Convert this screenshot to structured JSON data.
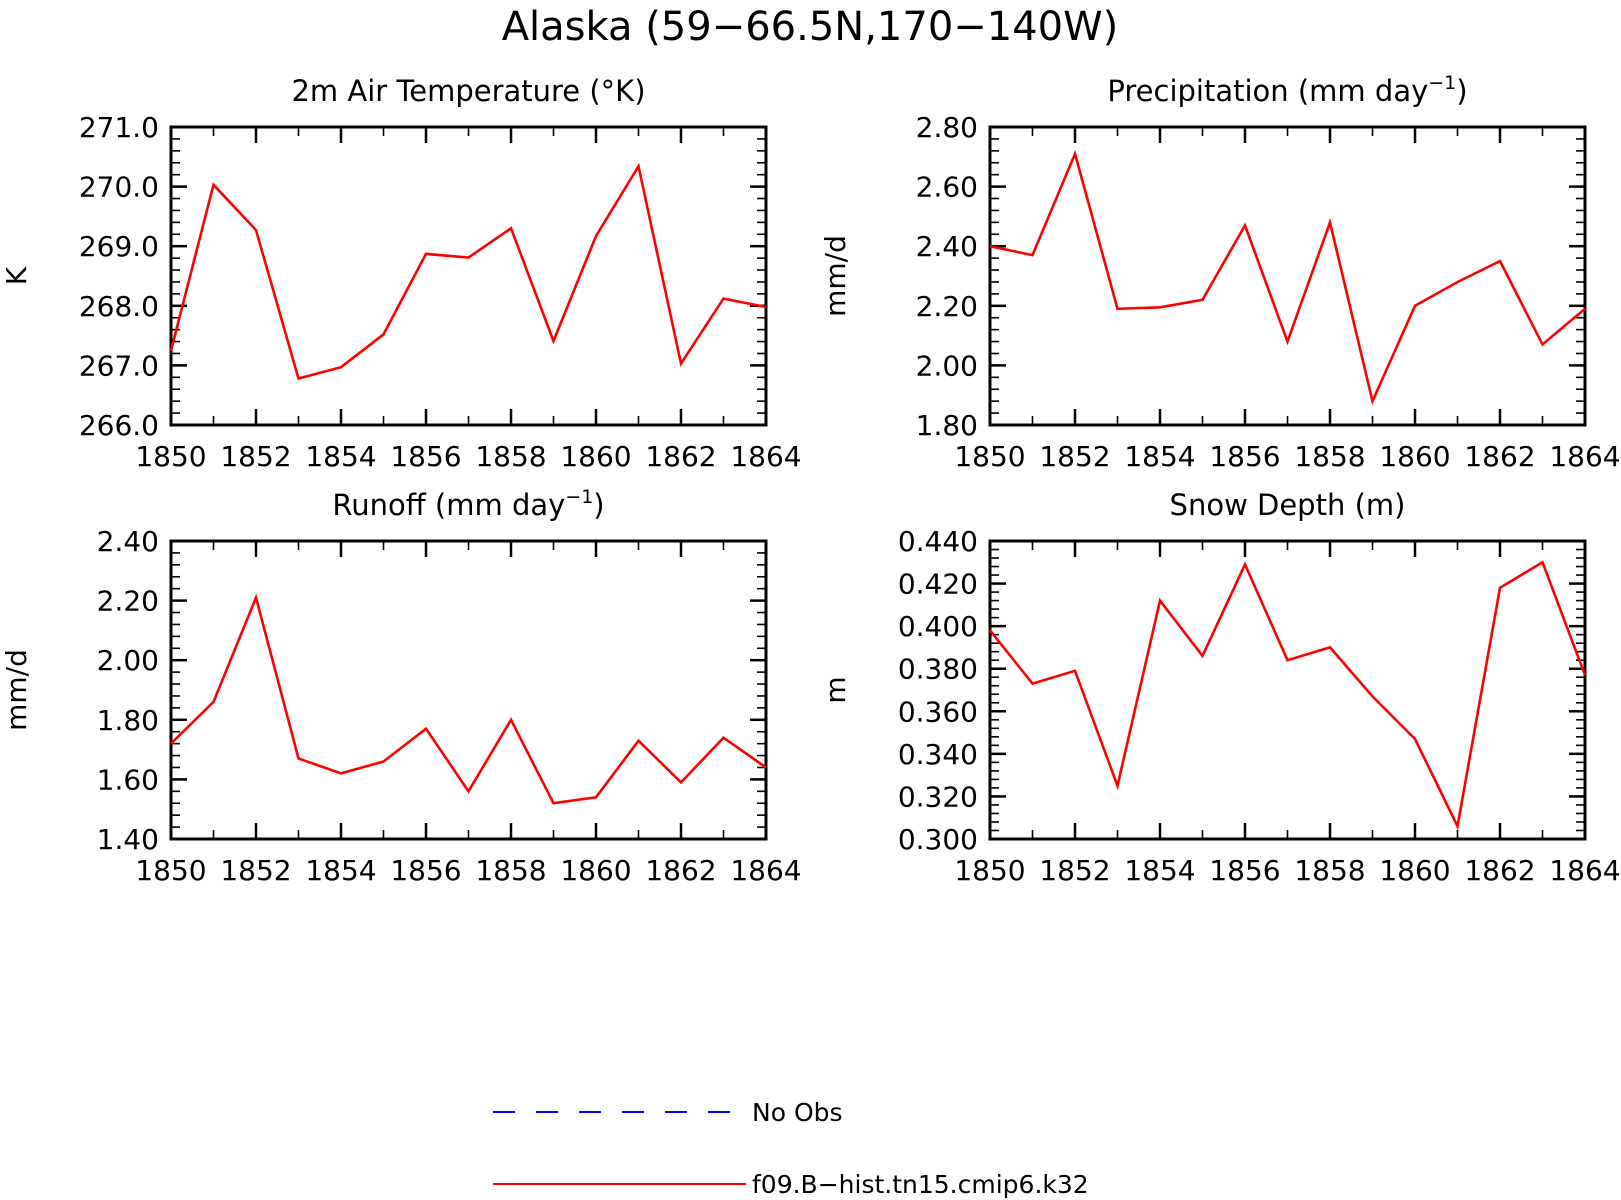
{
  "figure": {
    "title": "Alaska (59−66.5N,170−140W)"
  },
  "chart_data": [
    {
      "type": "line",
      "title": "2m Air Temperature (°K)",
      "title_sup": "",
      "title_suffix": "",
      "ylabel": "K",
      "xlim": [
        1850,
        1864
      ],
      "ylim": [
        266.0,
        271.0
      ],
      "x_ticks": [
        1850,
        1852,
        1854,
        1856,
        1858,
        1860,
        1862,
        1864
      ],
      "y_ticks": [
        "266.0",
        "267.0",
        "268.0",
        "269.0",
        "270.0",
        "271.0"
      ],
      "x": [
        1850,
        1851,
        1852,
        1853,
        1854,
        1855,
        1856,
        1857,
        1858,
        1859,
        1860,
        1861,
        1862,
        1863,
        1864
      ],
      "series": [
        {
          "name": "f09.B−hist.tn15.cmip6.k32",
          "color": "#ff0000",
          "values": [
            267.25,
            270.03,
            269.27,
            266.78,
            266.97,
            267.52,
            268.87,
            268.81,
            269.3,
            267.41,
            269.17,
            270.34,
            267.03,
            268.12,
            267.98
          ]
        }
      ]
    },
    {
      "type": "line",
      "title": "Precipitation (mm day",
      "title_sup": "−1",
      "title_suffix": ")",
      "ylabel": "mm/d",
      "xlim": [
        1850,
        1864
      ],
      "ylim": [
        1.8,
        2.8
      ],
      "x_ticks": [
        1850,
        1852,
        1854,
        1856,
        1858,
        1860,
        1862,
        1864
      ],
      "y_ticks": [
        "1.80",
        "2.00",
        "2.20",
        "2.40",
        "2.60",
        "2.80"
      ],
      "x": [
        1850,
        1851,
        1852,
        1853,
        1854,
        1855,
        1856,
        1857,
        1858,
        1859,
        1860,
        1861,
        1862,
        1863,
        1864
      ],
      "series": [
        {
          "name": "f09.B−hist.tn15.cmip6.k32",
          "color": "#ff0000",
          "values": [
            2.4,
            2.37,
            2.71,
            2.19,
            2.195,
            2.22,
            2.47,
            2.08,
            2.48,
            1.88,
            2.2,
            2.28,
            2.35,
            2.07,
            2.19
          ]
        }
      ]
    },
    {
      "type": "line",
      "title": "Runoff (mm day",
      "title_sup": "−1",
      "title_suffix": ")",
      "ylabel": "mm/d",
      "xlim": [
        1850,
        1864
      ],
      "ylim": [
        1.4,
        2.4
      ],
      "x_ticks": [
        1850,
        1852,
        1854,
        1856,
        1858,
        1860,
        1862,
        1864
      ],
      "y_ticks": [
        "1.40",
        "1.60",
        "1.80",
        "2.00",
        "2.20",
        "2.40"
      ],
      "x": [
        1850,
        1851,
        1852,
        1853,
        1854,
        1855,
        1856,
        1857,
        1858,
        1859,
        1860,
        1861,
        1862,
        1863,
        1864
      ],
      "series": [
        {
          "name": "f09.B−hist.tn15.cmip6.k32",
          "color": "#ff0000",
          "values": [
            1.72,
            1.86,
            2.21,
            1.67,
            1.62,
            1.66,
            1.77,
            1.56,
            1.8,
            1.52,
            1.54,
            1.73,
            1.59,
            1.74,
            1.64
          ]
        }
      ]
    },
    {
      "type": "line",
      "title": "Snow Depth (m)",
      "title_sup": "",
      "title_suffix": "",
      "ylabel": "m",
      "xlim": [
        1850,
        1864
      ],
      "ylim": [
        0.3,
        0.44
      ],
      "x_ticks": [
        1850,
        1852,
        1854,
        1856,
        1858,
        1860,
        1862,
        1864
      ],
      "y_ticks": [
        "0.300",
        "0.320",
        "0.340",
        "0.360",
        "0.380",
        "0.400",
        "0.420",
        "0.440"
      ],
      "x": [
        1850,
        1851,
        1852,
        1853,
        1854,
        1855,
        1856,
        1857,
        1858,
        1859,
        1860,
        1861,
        1862,
        1863,
        1864
      ],
      "series": [
        {
          "name": "f09.B−hist.tn15.cmip6.k32",
          "color": "#ff0000",
          "values": [
            0.398,
            0.373,
            0.379,
            0.325,
            0.412,
            0.386,
            0.429,
            0.384,
            0.39,
            0.367,
            0.347,
            0.306,
            0.418,
            0.43,
            0.377
          ]
        }
      ]
    }
  ],
  "legend": {
    "items": [
      {
        "label": "No Obs",
        "color": "#0000ff",
        "style": "dashed"
      },
      {
        "label": "f09.B−hist.tn15.cmip6.k32",
        "color": "#ff0000",
        "style": "solid"
      }
    ]
  }
}
